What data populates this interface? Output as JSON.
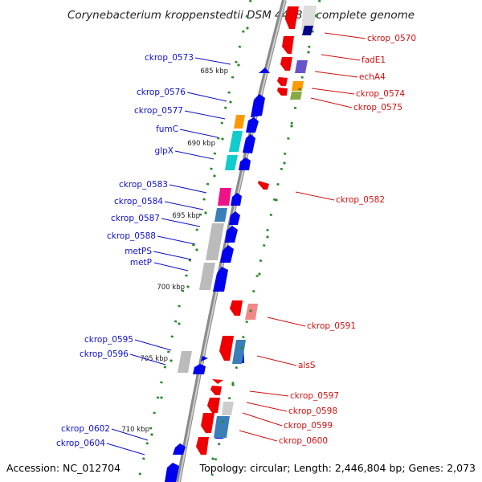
{
  "title": "Corynebacterium kroppenstedtii DSM 44385, complete genome",
  "footer": {
    "accession": "Accession: NC_012704",
    "topology": "Topology: circular; Length: 2,446,804 bp; Genes: 2,073"
  },
  "kbp_ticks": [
    "685 kbp",
    "690 kbp",
    "695 kbp",
    "700 kbp",
    "705 kbp",
    "710 kbp"
  ],
  "left_labels": [
    "ckrop_0573",
    "ckrop_0576",
    "ckrop_0577",
    "fumC",
    "glpX",
    "ckrop_0583",
    "ckrop_0584",
    "ckrop_0587",
    "ckrop_0588",
    "metPS",
    "metP",
    "ckrop_0595",
    "ckrop_0596",
    "ckrop_0602",
    "ckrop_0604"
  ],
  "right_labels": [
    "ckrop_0570",
    "fadE1",
    "echA4",
    "ckrop_0574",
    "ckrop_0575",
    "ckrop_0582",
    "ckrop_0591",
    "alsS",
    "ckrop_0597",
    "ckrop_0598",
    "ckrop_0599",
    "ckrop_0600"
  ],
  "colors": {
    "forward_strand": "#0000ee",
    "reverse_strand": "#ee0000",
    "backbone": "#888888",
    "tick_marks": "#2a8a2a"
  }
}
